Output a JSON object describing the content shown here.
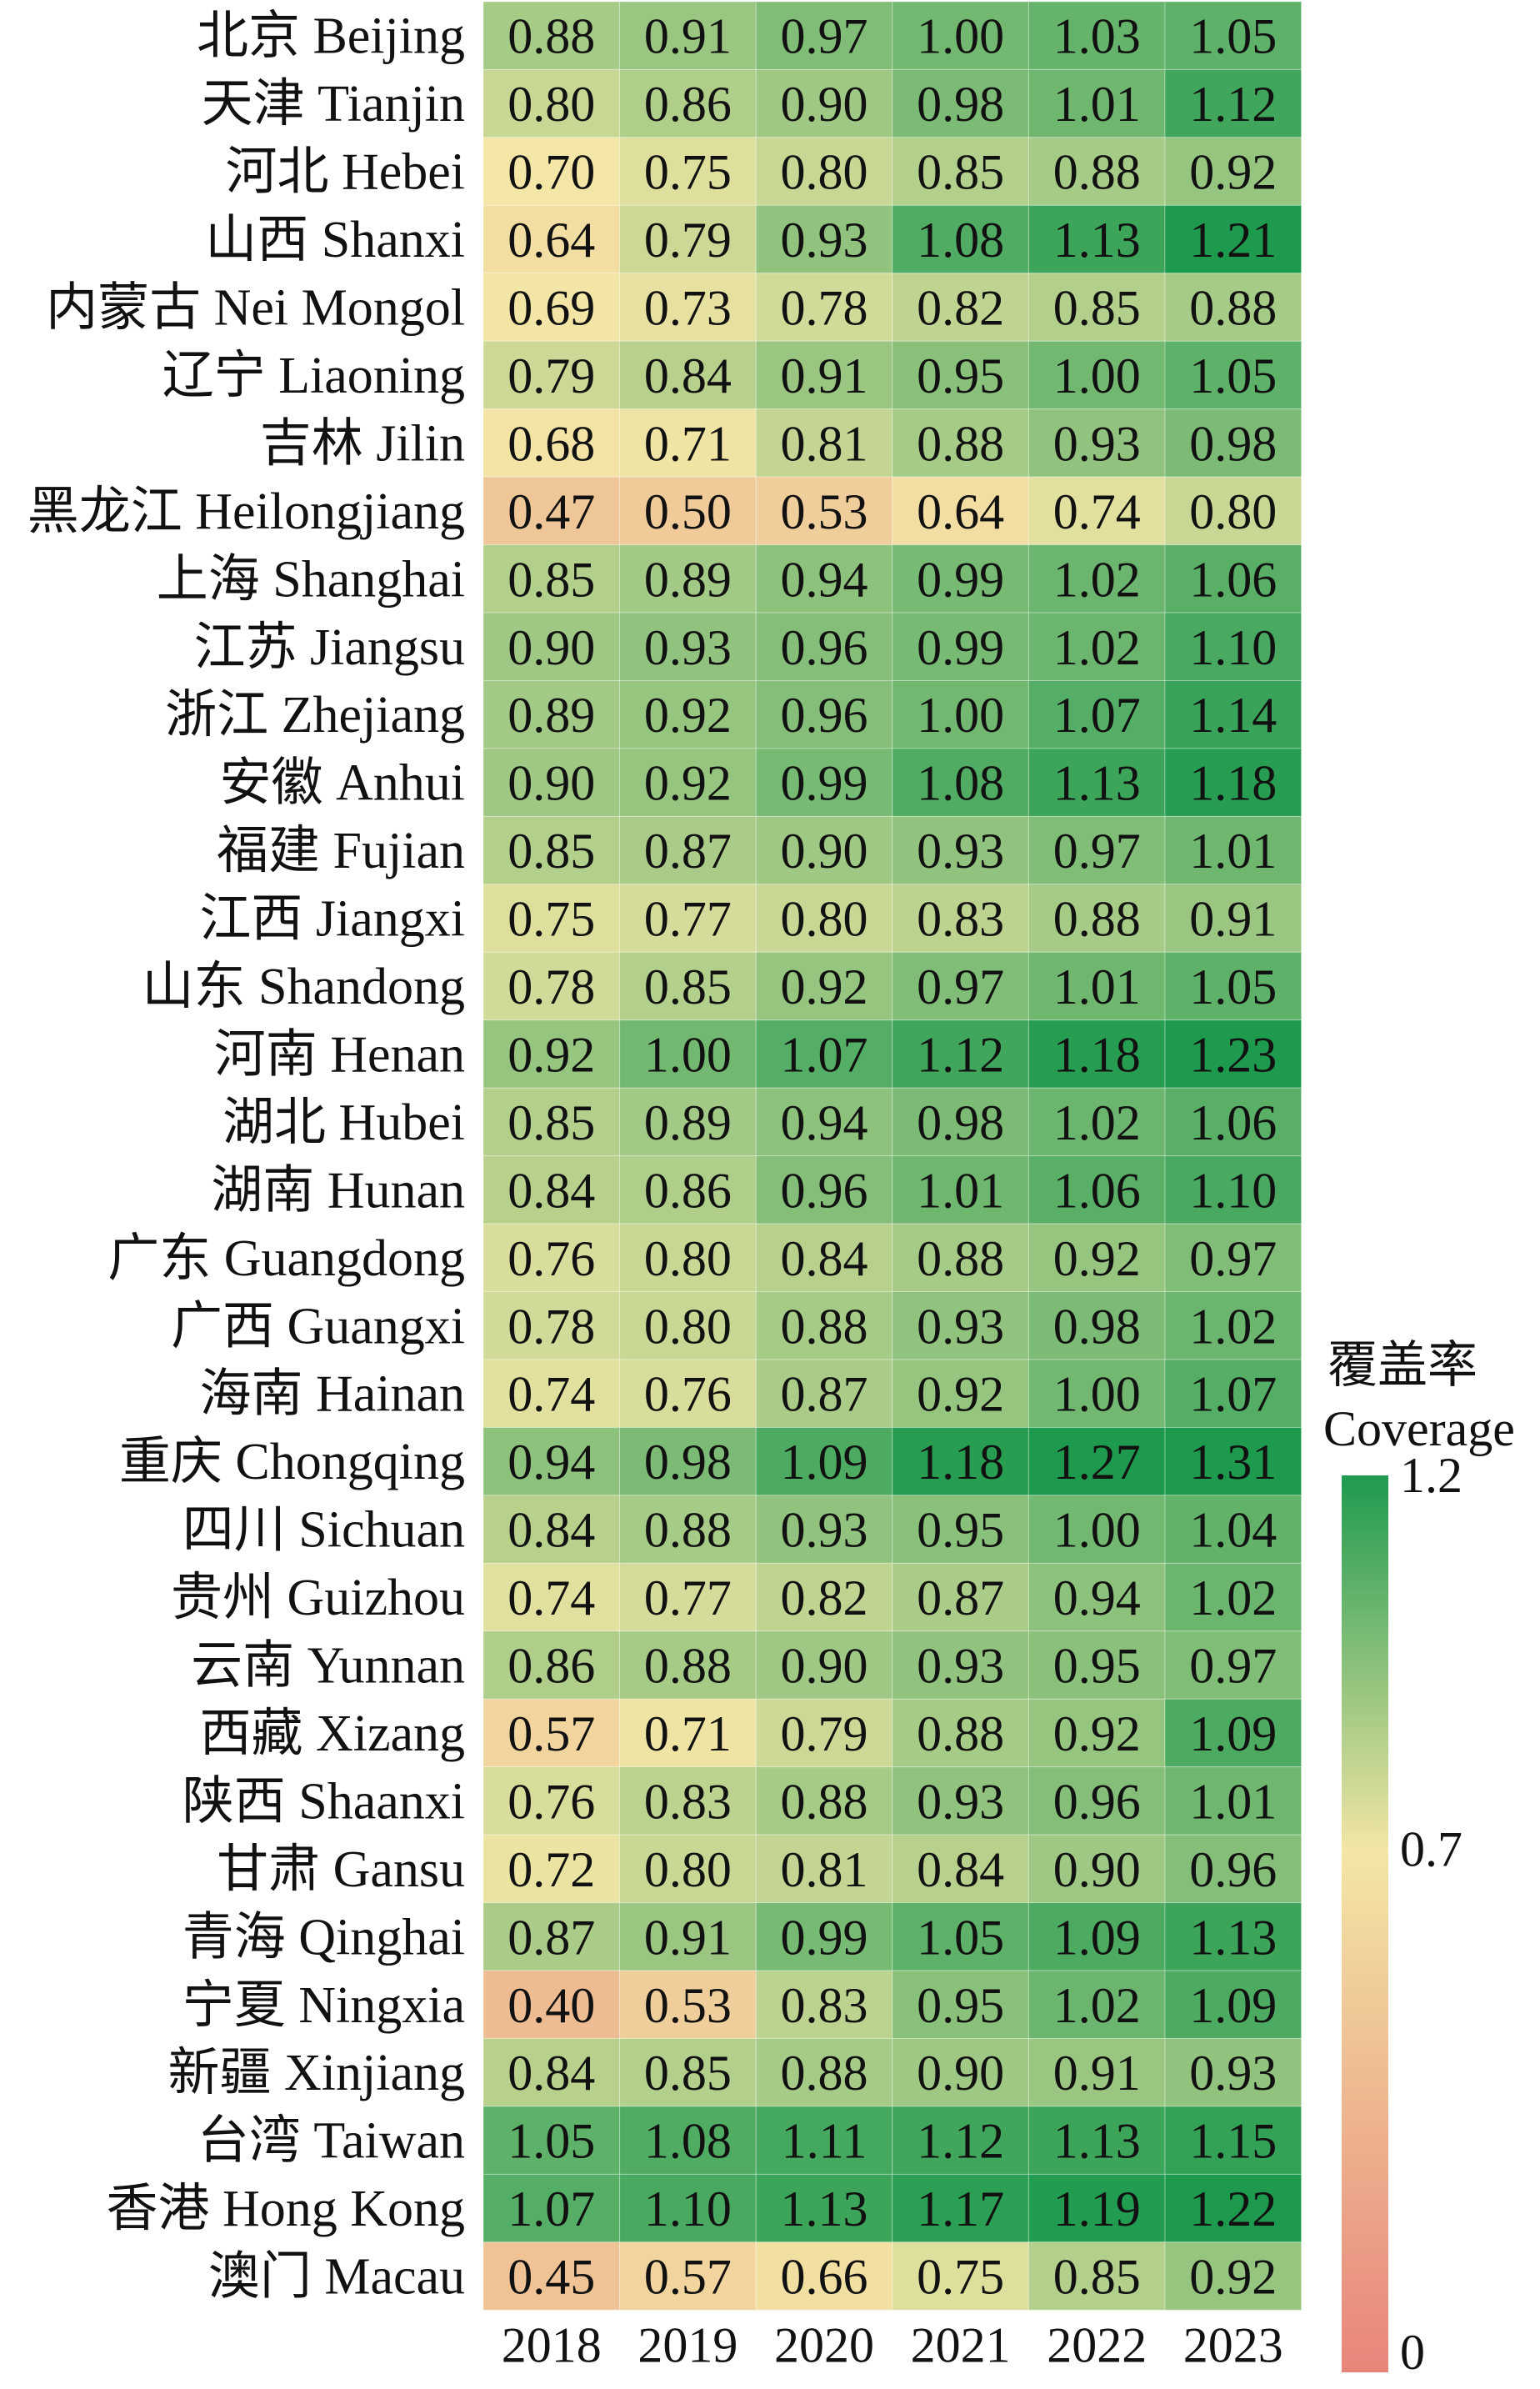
{
  "chart_data": {
    "type": "heatmap",
    "columns": [
      "2018",
      "2019",
      "2020",
      "2021",
      "2022",
      "2023"
    ],
    "rows": [
      "北京 Beijing",
      "天津 Tianjin",
      "河北 Hebei",
      "山西 Shanxi",
      "内蒙古 Nei Mongol",
      "辽宁 Liaoning",
      "吉林 Jilin",
      "黑龙江 Heilongjiang",
      "上海 Shanghai",
      "江苏 Jiangsu",
      "浙江 Zhejiang",
      "安徽 Anhui",
      "福建 Fujian",
      "江西 Jiangxi",
      "山东 Shandong",
      "河南 Henan",
      "湖北 Hubei",
      "湖南 Hunan",
      "广东 Guangdong",
      "广西 Guangxi",
      "海南 Hainan",
      "重庆 Chongqing",
      "四川 Sichuan",
      "贵州 Guizhou",
      "云南 Yunnan",
      "西藏 Xizang",
      "陕西 Shaanxi",
      "甘肃 Gansu",
      "青海 Qinghai",
      "宁夏 Ningxia",
      "新疆 Xinjiang",
      "台湾 Taiwan",
      "香港 Hong Kong",
      "澳门 Macau"
    ],
    "values": [
      [
        0.88,
        0.91,
        0.97,
        1.0,
        1.03,
        1.05
      ],
      [
        0.8,
        0.86,
        0.9,
        0.98,
        1.01,
        1.12
      ],
      [
        0.7,
        0.75,
        0.8,
        0.85,
        0.88,
        0.92
      ],
      [
        0.64,
        0.79,
        0.93,
        1.08,
        1.13,
        1.21
      ],
      [
        0.69,
        0.73,
        0.78,
        0.82,
        0.85,
        0.88
      ],
      [
        0.79,
        0.84,
        0.91,
        0.95,
        1.0,
        1.05
      ],
      [
        0.68,
        0.71,
        0.81,
        0.88,
        0.93,
        0.98
      ],
      [
        0.47,
        0.5,
        0.53,
        0.64,
        0.74,
        0.8
      ],
      [
        0.85,
        0.89,
        0.94,
        0.99,
        1.02,
        1.06
      ],
      [
        0.9,
        0.93,
        0.96,
        0.99,
        1.02,
        1.1
      ],
      [
        0.89,
        0.92,
        0.96,
        1.0,
        1.07,
        1.14
      ],
      [
        0.9,
        0.92,
        0.99,
        1.08,
        1.13,
        1.18
      ],
      [
        0.85,
        0.87,
        0.9,
        0.93,
        0.97,
        1.01
      ],
      [
        0.75,
        0.77,
        0.8,
        0.83,
        0.88,
        0.91
      ],
      [
        0.78,
        0.85,
        0.92,
        0.97,
        1.01,
        1.05
      ],
      [
        0.92,
        1.0,
        1.07,
        1.12,
        1.18,
        1.23
      ],
      [
        0.85,
        0.89,
        0.94,
        0.98,
        1.02,
        1.06
      ],
      [
        0.84,
        0.86,
        0.96,
        1.01,
        1.06,
        1.1
      ],
      [
        0.76,
        0.8,
        0.84,
        0.88,
        0.92,
        0.97
      ],
      [
        0.78,
        0.8,
        0.88,
        0.93,
        0.98,
        1.02
      ],
      [
        0.74,
        0.76,
        0.87,
        0.92,
        1.0,
        1.07
      ],
      [
        0.94,
        0.98,
        1.09,
        1.18,
        1.27,
        1.31
      ],
      [
        0.84,
        0.88,
        0.93,
        0.95,
        1.0,
        1.04
      ],
      [
        0.74,
        0.77,
        0.82,
        0.87,
        0.94,
        1.02
      ],
      [
        0.86,
        0.88,
        0.9,
        0.93,
        0.95,
        0.97
      ],
      [
        0.57,
        0.71,
        0.79,
        0.88,
        0.92,
        1.09
      ],
      [
        0.76,
        0.83,
        0.88,
        0.93,
        0.96,
        1.01
      ],
      [
        0.72,
        0.8,
        0.81,
        0.84,
        0.9,
        0.96
      ],
      [
        0.87,
        0.91,
        0.99,
        1.05,
        1.09,
        1.13
      ],
      [
        0.4,
        0.53,
        0.83,
        0.95,
        1.02,
        1.09
      ],
      [
        0.84,
        0.85,
        0.88,
        0.9,
        0.91,
        0.93
      ],
      [
        1.05,
        1.08,
        1.11,
        1.12,
        1.13,
        1.15
      ],
      [
        1.07,
        1.1,
        1.13,
        1.17,
        1.19,
        1.22
      ],
      [
        0.45,
        0.57,
        0.66,
        0.75,
        0.85,
        0.92
      ]
    ],
    "colorbar": {
      "title_line1": "覆盖率",
      "title_line2": "Coverage",
      "ticks": [
        "1.2",
        "0.7",
        "0"
      ],
      "tick_values": [
        1.2,
        0.7,
        0
      ],
      "vmin": 0,
      "vmid": 0.7,
      "vmax": 1.2,
      "colors": {
        "low": "#e8857a",
        "mid": "#f3e6a6",
        "high": "#1e9a4e"
      }
    }
  }
}
